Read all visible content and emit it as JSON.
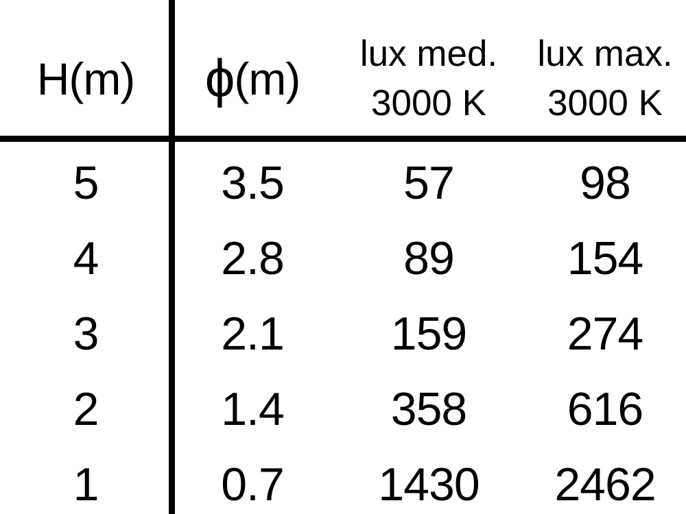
{
  "table": {
    "headers": {
      "h": "H(m)",
      "phi_symbol": "ϕ",
      "phi_unit": "(m)",
      "lux_med_line1": "lux med.",
      "lux_med_line2": "3000 K",
      "lux_max_line1": "lux max.",
      "lux_max_line2": "3000 K"
    },
    "rows": [
      {
        "h": "5",
        "phi": "3.5",
        "lux_med": "57",
        "lux_max": "98"
      },
      {
        "h": "4",
        "phi": "2.8",
        "lux_med": "89",
        "lux_max": "154"
      },
      {
        "h": "3",
        "phi": "2.1",
        "lux_med": "159",
        "lux_max": "274"
      },
      {
        "h": "2",
        "phi": "1.4",
        "lux_med": "358",
        "lux_max": "616"
      },
      {
        "h": "1",
        "phi": "0.7",
        "lux_med": "1430",
        "lux_max": "2462"
      }
    ]
  },
  "colors": {
    "text": "#000000",
    "background": "#ffffff",
    "rule": "#000000"
  },
  "chart_data": {
    "type": "table",
    "columns": [
      "H(m)",
      "ϕ(m)",
      "lux med. 3000 K",
      "lux max. 3000 K"
    ],
    "rows": [
      [
        5,
        3.5,
        57,
        98
      ],
      [
        4,
        2.8,
        89,
        154
      ],
      [
        3,
        2.1,
        159,
        274
      ],
      [
        2,
        1.4,
        358,
        616
      ],
      [
        1,
        0.7,
        1430,
        2462
      ]
    ]
  }
}
